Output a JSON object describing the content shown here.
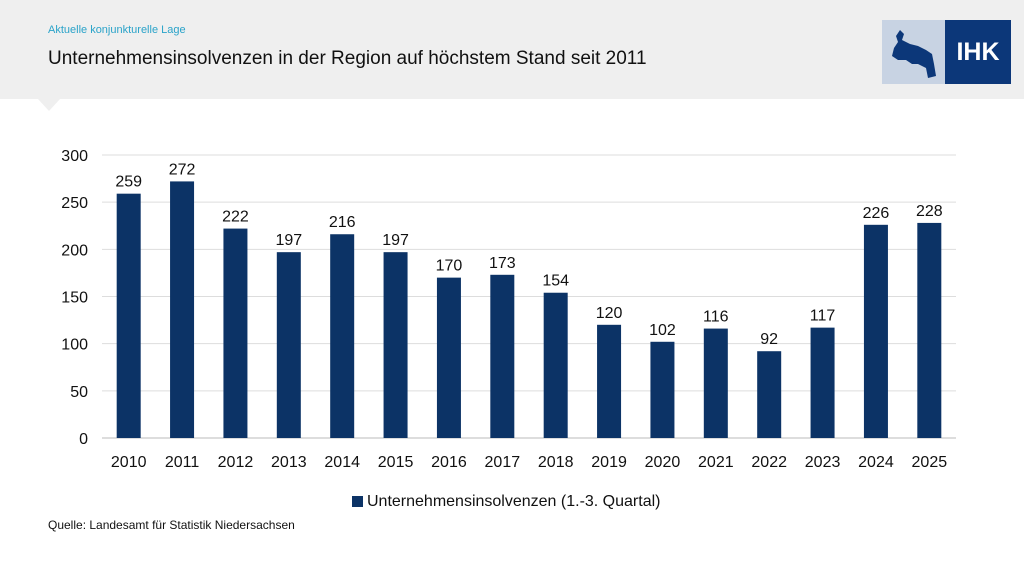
{
  "header": {
    "kicker": "Aktuelle konjunkturelle Lage",
    "title": "Unternehmensinsolvenzen in der Region auf höchstem Stand seit 2011",
    "logo_text": "IHK"
  },
  "source": "Quelle: Landesamt für Statistik Niedersachsen",
  "colors": {
    "bar": "#0c3366",
    "header_bg": "#efefef",
    "kicker": "#2aa3c9"
  },
  "chart_data": {
    "type": "bar",
    "categories": [
      "2010",
      "2011",
      "2012",
      "2013",
      "2014",
      "2015",
      "2016",
      "2017",
      "2018",
      "2019",
      "2020",
      "2021",
      "2022",
      "2023",
      "2024",
      "2025"
    ],
    "series": [
      {
        "name": "Unternehmensinsolvenzen (1.-3. Quartal)",
        "values": [
          259,
          272,
          222,
          197,
          216,
          197,
          170,
          173,
          154,
          120,
          102,
          116,
          92,
          117,
          226,
          228
        ]
      }
    ],
    "yticks": [
      0,
      50,
      100,
      150,
      200,
      250,
      300
    ],
    "ylim": [
      0,
      300
    ],
    "grid": true,
    "legend": "bottom",
    "data_labels": true
  }
}
